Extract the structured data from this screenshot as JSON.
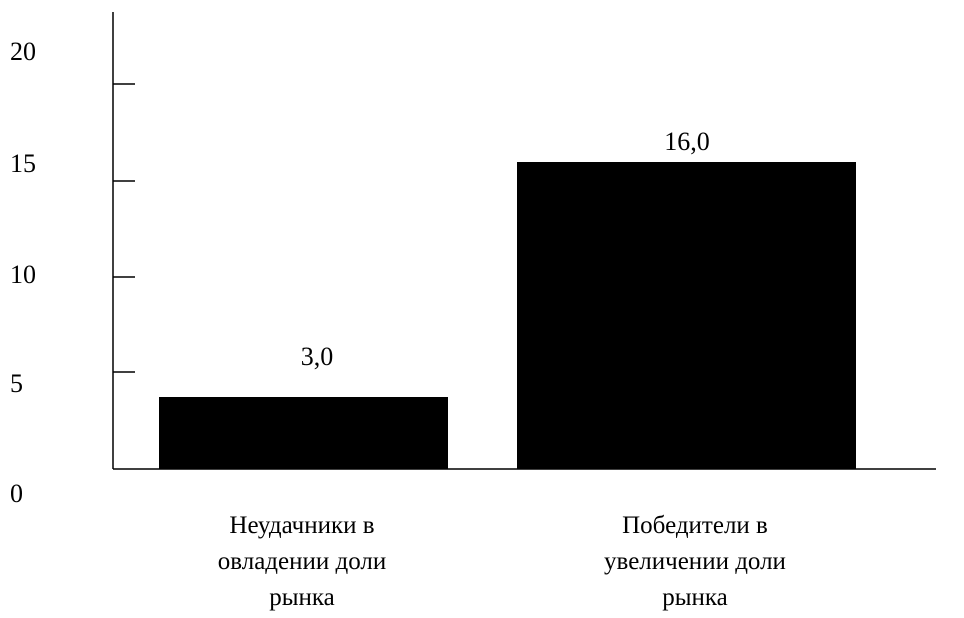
{
  "chart_data": {
    "type": "bar",
    "categories": [
      [
        "Неудачники в",
        "овладении доли",
        "рынка"
      ],
      [
        "Победители в",
        "увеличении доли",
        "рынка"
      ]
    ],
    "values": [
      3.0,
      16.0
    ],
    "data_labels": [
      "3,0",
      "16,0"
    ],
    "y_ticks": [
      "0",
      "5",
      "10",
      "15",
      "20"
    ],
    "y_tick_values": [
      0,
      5,
      10,
      15,
      20
    ],
    "ylim": [
      0,
      20
    ],
    "grid": false,
    "legend": "none",
    "colors": {
      "bar": "#000000",
      "axis": "#000000",
      "background": "#ffffff"
    }
  }
}
